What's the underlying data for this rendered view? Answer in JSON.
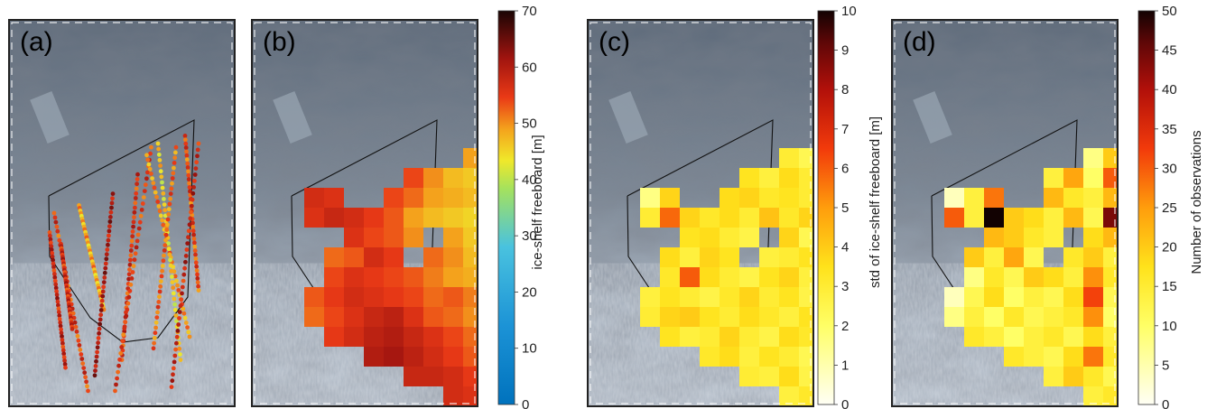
{
  "chart_data": [
    {
      "type": "scatter",
      "panel": "(a)",
      "description": "along-track ice-shelf freeboard observations (colored points) within the ice-shelf outline",
      "color_scale": "ice-shelf freeboard [m]",
      "tracks": [
        {
          "from": [
            0.18,
            0.55
          ],
          "to": [
            0.25,
            0.9
          ],
          "value": 58
        },
        {
          "from": [
            0.2,
            0.5
          ],
          "to": [
            0.35,
            0.96
          ],
          "value": 55
        },
        {
          "from": [
            0.23,
            0.58
          ],
          "to": [
            0.28,
            0.8
          ],
          "value": 57
        },
        {
          "from": [
            0.31,
            0.48
          ],
          "to": [
            0.42,
            0.75
          ],
          "value": 48
        },
        {
          "from": [
            0.46,
            0.45
          ],
          "to": [
            0.38,
            0.92
          ],
          "value": 60
        },
        {
          "from": [
            0.57,
            0.4
          ],
          "to": [
            0.5,
            0.88
          ],
          "value": 56
        },
        {
          "from": [
            0.63,
            0.33
          ],
          "to": [
            0.47,
            0.96
          ],
          "value": 55
        },
        {
          "from": [
            0.61,
            0.35
          ],
          "to": [
            0.8,
            0.82
          ],
          "value": 50
        },
        {
          "from": [
            0.66,
            0.32
          ],
          "to": [
            0.76,
            0.88
          ],
          "value": 45
        },
        {
          "from": [
            0.74,
            0.33
          ],
          "to": [
            0.64,
            0.85
          ],
          "value": 52
        },
        {
          "from": [
            0.78,
            0.3
          ],
          "to": [
            0.84,
            0.7
          ],
          "value": 54
        },
        {
          "from": [
            0.84,
            0.32
          ],
          "to": [
            0.72,
            0.95
          ],
          "value": 58
        }
      ]
    },
    {
      "type": "heatmap",
      "panel": "(b)",
      "color_scale": "ice-shelf freeboard [m]",
      "colorbar_ticks": [
        0,
        10,
        20,
        30,
        40,
        50,
        60,
        70
      ],
      "clim": [
        0,
        70
      ],
      "rows": [
        "r1",
        "r2",
        "r3",
        "r4",
        "r5",
        "r6",
        "r7",
        "r8",
        "r9",
        "r10",
        "r11",
        "r12",
        "r13",
        "r14",
        "r15"
      ],
      "columns": [
        "c1",
        "c2",
        "c3",
        "c4",
        "c5",
        "c6",
        "c7",
        "c8",
        "c9",
        "c10",
        "c11",
        "c12"
      ],
      "grid": [
        [
          null,
          null,
          null,
          null,
          null,
          null,
          null,
          null,
          null,
          null,
          null,
          56
        ],
        [
          null,
          null,
          null,
          null,
          null,
          null,
          null,
          null,
          null,
          null,
          52,
          51
        ],
        [
          null,
          null,
          null,
          null,
          null,
          null,
          null,
          null,
          null,
          49,
          47,
          50
        ],
        [
          null,
          null,
          null,
          null,
          null,
          null,
          54,
          50,
          47,
          46,
          45,
          44
        ],
        [
          null,
          57,
          56,
          null,
          null,
          54,
          52,
          49,
          48,
          47,
          44,
          45
        ],
        [
          null,
          56,
          58,
          57,
          55,
          53,
          49,
          47,
          46,
          45,
          46,
          43
        ],
        [
          null,
          null,
          null,
          56,
          54,
          53,
          50,
          null,
          49,
          46,
          44,
          null
        ],
        [
          null,
          null,
          52,
          53,
          57,
          55,
          null,
          52,
          50,
          47,
          46,
          null
        ],
        [
          null,
          null,
          54,
          56,
          55,
          54,
          53,
          51,
          49,
          48,
          47,
          54
        ],
        [
          null,
          53,
          55,
          57,
          56,
          55,
          54,
          52,
          53,
          51,
          49,
          53
        ],
        [
          null,
          52,
          54,
          56,
          58,
          59,
          56,
          53,
          52,
          50,
          48,
          null
        ],
        [
          null,
          null,
          55,
          57,
          59,
          60,
          58,
          56,
          54,
          52,
          50,
          null
        ],
        [
          null,
          null,
          null,
          null,
          60,
          61,
          59,
          57,
          55,
          53,
          50,
          null
        ],
        [
          null,
          null,
          null,
          null,
          null,
          null,
          58,
          58,
          57,
          55,
          null,
          null
        ],
        [
          null,
          null,
          null,
          null,
          null,
          null,
          null,
          null,
          57,
          56,
          null,
          null
        ]
      ]
    },
    {
      "type": "heatmap",
      "panel": "(c)",
      "color_scale": "std of ice-shelf freeboard [m]",
      "colorbar_ticks": [
        0,
        1,
        2,
        3,
        4,
        5,
        6,
        7,
        8,
        9,
        10
      ],
      "clim": [
        0,
        10
      ],
      "rows": [
        "r1",
        "r2",
        "r3",
        "r4",
        "r5",
        "r6",
        "r7",
        "r8",
        "r9",
        "r10",
        "r11",
        "r12",
        "r13",
        "r14",
        "r15"
      ],
      "columns": [
        "c1",
        "c2",
        "c3",
        "c4",
        "c5",
        "c6",
        "c7",
        "c8",
        "c9",
        "c10",
        "c11",
        "c12"
      ],
      "grid": [
        [
          null,
          null,
          null,
          null,
          null,
          null,
          null,
          null,
          null,
          null,
          null,
          2.6
        ],
        [
          null,
          null,
          null,
          null,
          null,
          null,
          null,
          null,
          null,
          null,
          3.4,
          2.2
        ],
        [
          null,
          null,
          null,
          null,
          null,
          null,
          null,
          null,
          3.0,
          2.4,
          3.6,
          2.8
        ],
        [
          null,
          null,
          null,
          null,
          null,
          null,
          3.4,
          2.8,
          3.6,
          3.0,
          2.4,
          3.2
        ],
        [
          null,
          1.6,
          3.8,
          null,
          null,
          3.6,
          3.8,
          3.2,
          3.4,
          3.0,
          3.6,
          2.4
        ],
        [
          null,
          3.0,
          5.8,
          3.8,
          3.2,
          3.6,
          3.0,
          4.2,
          3.2,
          3.8,
          2.8,
          null
        ],
        [
          null,
          null,
          null,
          3.4,
          3.6,
          3.0,
          2.6,
          null,
          3.8,
          2.4,
          3.2,
          null
        ],
        [
          null,
          null,
          3.6,
          2.8,
          3.8,
          3.4,
          null,
          2.8,
          3.0,
          3.4,
          2.6,
          null
        ],
        [
          null,
          null,
          3.2,
          6.0,
          3.6,
          3.0,
          2.6,
          3.4,
          3.8,
          2.8,
          2.6,
          3.0
        ],
        [
          null,
          2.8,
          3.4,
          3.0,
          2.6,
          3.2,
          3.8,
          3.0,
          3.4,
          2.6,
          2.2,
          null
        ],
        [
          null,
          3.0,
          3.8,
          4.0,
          3.4,
          3.0,
          3.6,
          3.2,
          2.8,
          3.4,
          0.6,
          null
        ],
        [
          null,
          null,
          3.4,
          2.8,
          3.0,
          3.8,
          3.0,
          2.6,
          3.6,
          3.2,
          1.2,
          null
        ],
        [
          null,
          null,
          null,
          null,
          3.2,
          3.6,
          2.8,
          3.4,
          3.0,
          2.4,
          null,
          null
        ],
        [
          null,
          null,
          null,
          null,
          null,
          null,
          3.0,
          2.8,
          3.6,
          2.6,
          null,
          null
        ],
        [
          null,
          null,
          null,
          null,
          null,
          null,
          null,
          null,
          2.8,
          3.2,
          null,
          null
        ]
      ]
    },
    {
      "type": "heatmap",
      "panel": "(d)",
      "color_scale": "Number of observations",
      "colorbar_ticks": [
        0,
        5,
        10,
        15,
        20,
        25,
        30,
        35,
        40,
        45,
        50
      ],
      "clim": [
        0,
        50
      ],
      "rows": [
        "r1",
        "r2",
        "r3",
        "r4",
        "r5",
        "r6",
        "r7",
        "r8",
        "r9",
        "r10",
        "r11",
        "r12",
        "r13",
        "r14",
        "r15"
      ],
      "columns": [
        "c1",
        "c2",
        "c3",
        "c4",
        "c5",
        "c6",
        "c7",
        "c8",
        "c9",
        "c10",
        "c11",
        "c12"
      ],
      "grid": [
        [
          null,
          null,
          null,
          null,
          null,
          null,
          null,
          null,
          null,
          null,
          null,
          12
        ],
        [
          null,
          null,
          null,
          null,
          null,
          null,
          null,
          null,
          null,
          null,
          14,
          12
        ],
        [
          null,
          null,
          null,
          null,
          null,
          null,
          null,
          null,
          8,
          20,
          26,
          16
        ],
        [
          null,
          null,
          null,
          null,
          null,
          null,
          14,
          24,
          10,
          30,
          48,
          16
        ],
        [
          null,
          4,
          14,
          28,
          null,
          null,
          22,
          16,
          14,
          22,
          34,
          28
        ],
        [
          null,
          30,
          14,
          50,
          20,
          18,
          14,
          22,
          12,
          44,
          14,
          null
        ],
        [
          null,
          null,
          null,
          22,
          20,
          16,
          14,
          null,
          18,
          22,
          50,
          null
        ],
        [
          null,
          null,
          20,
          14,
          24,
          12,
          null,
          16,
          20,
          14,
          40,
          null
        ],
        [
          null,
          null,
          8,
          16,
          12,
          20,
          18,
          14,
          26,
          16,
          18,
          null
        ],
        [
          null,
          4,
          12,
          18,
          10,
          14,
          12,
          18,
          32,
          12,
          14,
          null
        ],
        [
          null,
          8,
          14,
          10,
          16,
          12,
          14,
          16,
          26,
          10,
          6,
          null
        ],
        [
          null,
          null,
          16,
          14,
          10,
          14,
          16,
          12,
          18,
          14,
          4,
          null
        ],
        [
          null,
          null,
          null,
          null,
          16,
          14,
          12,
          18,
          28,
          16,
          null,
          null
        ],
        [
          null,
          null,
          null,
          null,
          null,
          null,
          14,
          20,
          16,
          12,
          null,
          null
        ],
        [
          null,
          null,
          null,
          null,
          null,
          null,
          null,
          null,
          14,
          16,
          null,
          null
        ]
      ]
    }
  ],
  "panels": {
    "a": {
      "label": "(a)"
    },
    "b": {
      "label": "(b)",
      "colorbar_title": "ice-shelf freeboard [m]"
    },
    "c": {
      "label": "(c)",
      "colorbar_title": "std of ice-shelf freeboard [m]"
    },
    "d": {
      "label": "(d)",
      "colorbar_title": "Number of observations"
    }
  }
}
